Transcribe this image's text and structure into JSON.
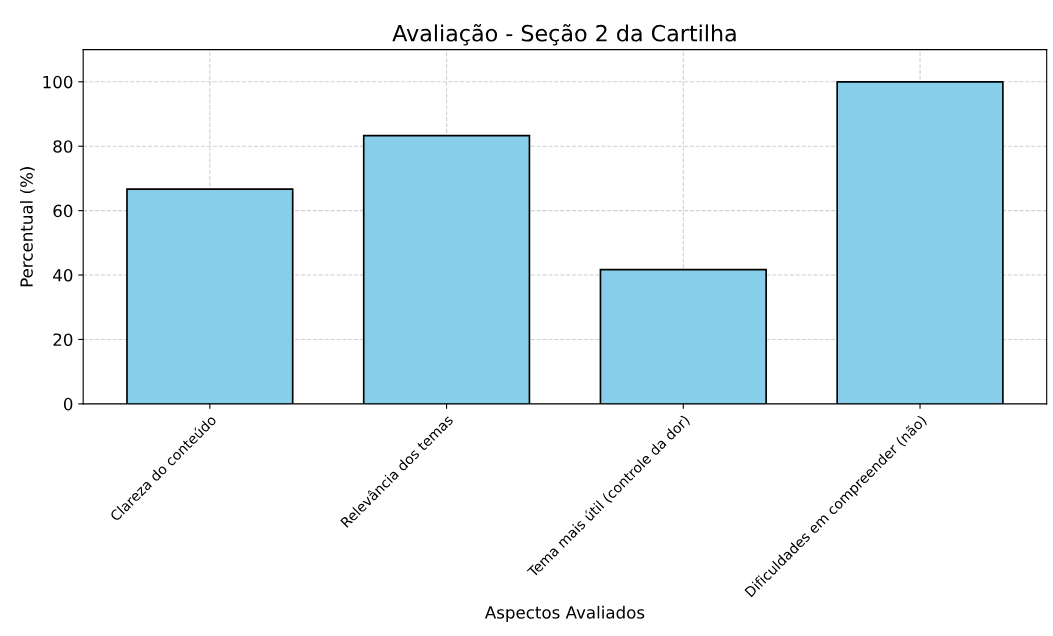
{
  "chart_data": {
    "type": "bar",
    "title": "Avaliação - Seção 2 da Cartilha",
    "xlabel": "Aspectos Avaliados",
    "ylabel": "Percentual (%)",
    "categories": [
      "Clareza do conteúdo",
      "Relevância dos temas",
      "Tema mais útil (controle da dor)",
      "Dificuldades em compreender (não)"
    ],
    "values": [
      66.7,
      83.3,
      41.7,
      100
    ],
    "color": "#87ceeb",
    "ylim": [
      0,
      110
    ],
    "yticks": [
      0,
      20,
      40,
      60,
      80,
      100
    ],
    "grid": true
  }
}
